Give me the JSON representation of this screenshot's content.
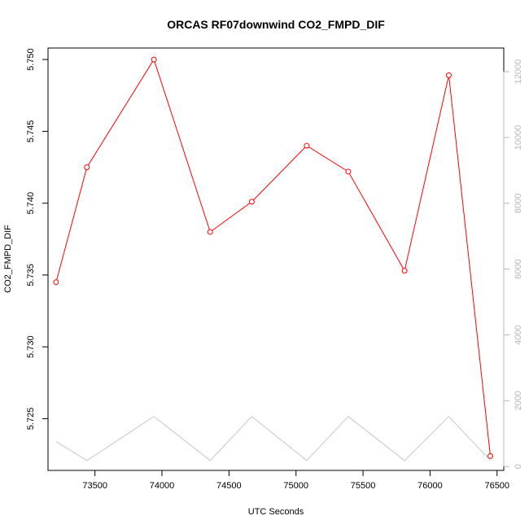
{
  "chart_data": {
    "type": "line",
    "title": "ORCAS RF07downwind CO2_FMPD_DIF",
    "xlabel": "UTC Seconds",
    "ylabel": "CO2_FMPD_DIF",
    "y2label": "",
    "xlim": [
      73150,
      76550
    ],
    "ylim": [
      5.7214,
      5.7508
    ],
    "y2lim": [
      -120,
      12720
    ],
    "x_ticks": [
      73500,
      74000,
      74500,
      75000,
      75500,
      76000,
      76500
    ],
    "y_ticks": [
      5.725,
      5.73,
      5.735,
      5.74,
      5.745,
      5.75
    ],
    "y_tick_labels": [
      "5.725",
      "5.730",
      "5.735",
      "5.740",
      "5.745",
      "5.750"
    ],
    "y2_ticks": [
      0,
      2000,
      4000,
      6000,
      8000,
      10000,
      12000
    ],
    "grid": false,
    "legend": "none",
    "series": [
      {
        "color": "#ff0000",
        "axis": "left",
        "marker": "open-circle",
        "x": [
          73210,
          73440,
          73940,
          74360,
          74670,
          75080,
          75390,
          75810,
          76140,
          76450
        ],
        "y": [
          5.7345,
          5.7425,
          5.75,
          5.738,
          5.7401,
          5.744,
          5.7422,
          5.7353,
          5.7489,
          5.7224
        ]
      },
      {
        "color": "#c8c8c8",
        "axis": "right",
        "marker": "none",
        "x": [
          73210,
          73440,
          73940,
          74360,
          74670,
          75080,
          75390,
          75810,
          76140,
          76450
        ],
        "y": [
          760,
          180,
          1520,
          180,
          1520,
          180,
          1520,
          180,
          1520,
          180
        ]
      }
    ]
  }
}
